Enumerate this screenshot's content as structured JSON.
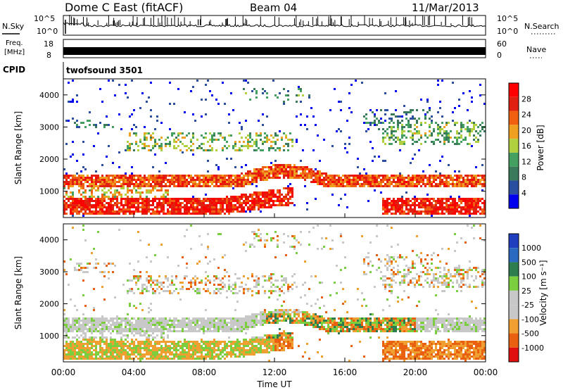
{
  "header": {
    "station": "Dome C East (fitACF)",
    "beam": "Beam 04",
    "date": "11/Mar/2013"
  },
  "noise_panel": {
    "left_label": "N.Sky",
    "right_label": "N.Search",
    "left_ticks": [
      "10^5",
      "10^0"
    ],
    "right_ticks": [
      "10^5",
      "10^0"
    ]
  },
  "freq_panel": {
    "left_label_1": "Freq.",
    "left_label_2": "[MHz]",
    "left_ticks": [
      "18",
      "8"
    ],
    "right_label": "Nave",
    "right_ticks": [
      "60",
      "0"
    ]
  },
  "cpid": {
    "label": "CPID",
    "value": "twofsound 3501"
  },
  "x_axis": {
    "label": "Time UT",
    "ticks": [
      "00:00",
      "04:00",
      "08:00",
      "12:00",
      "16:00",
      "20:00",
      "00:00"
    ]
  },
  "colors": {
    "power_scale": [
      "#0000ee",
      "#2a4fa0",
      "#3a7a5a",
      "#44a060",
      "#b0d040",
      "#f0a020",
      "#f06010",
      "#e02010",
      "#ff0000"
    ],
    "velocity_scale": [
      "#1f3fbf",
      "#2a6ac0",
      "#2e7d4f",
      "#7bcf3f",
      "#c8c8c8",
      "#c8c8c8",
      "#f0a030",
      "#e86010",
      "#e01010"
    ]
  },
  "chart_data": [
    {
      "type": "heatmap",
      "title": "",
      "xlabel": "Time UT",
      "ylabel": "Slant Range [km]",
      "xlim": [
        0,
        24
      ],
      "ylim": [
        180,
        4500
      ],
      "yticks": [
        "1000",
        "2000",
        "3000",
        "4000"
      ],
      "colorbar": {
        "label": "Power [dB]",
        "ticks": [
          "4",
          "8",
          "12",
          "16",
          "20",
          "24",
          "28"
        ],
        "range": [
          0,
          30
        ]
      },
      "bands": [
        {
          "range_km": [
            300,
            800
          ],
          "t_start": 0,
          "t_end": 24,
          "level": 26
        },
        {
          "range_km": [
            1150,
            1550
          ],
          "t_start": 0,
          "t_end": 24,
          "level": 24
        },
        {
          "range_km": [
            2300,
            2900
          ],
          "t_start": 4,
          "t_end": 13,
          "level": 16
        },
        {
          "range_km": [
            2500,
            3200
          ],
          "t_start": 18,
          "t_end": 24,
          "level": 14
        }
      ]
    },
    {
      "type": "heatmap",
      "title": "",
      "xlabel": "Time UT",
      "ylabel": "Slant Range [km]",
      "xlim": [
        0,
        24
      ],
      "ylim": [
        180,
        4500
      ],
      "yticks": [
        "1000",
        "2000",
        "3000",
        "4000"
      ],
      "colorbar": {
        "label": "Velocity [m s⁻¹]",
        "ticks": [
          "1000",
          "500",
          "100",
          "25",
          "-25",
          "-100",
          "-500",
          "-1000"
        ],
        "range": [
          -1000,
          1000
        ]
      },
      "bands": [
        {
          "range_km": [
            300,
            800
          ],
          "t_start": 0,
          "t_end": 12,
          "level": -100
        },
        {
          "range_km": [
            1150,
            1550
          ],
          "t_start": 0,
          "t_end": 12,
          "level": 0
        },
        {
          "range_km": [
            900,
            1700
          ],
          "t_start": 12,
          "t_end": 20,
          "level": 100
        },
        {
          "range_km": [
            2300,
            2900
          ],
          "t_start": 4,
          "t_end": 13,
          "level": -100
        }
      ]
    }
  ]
}
